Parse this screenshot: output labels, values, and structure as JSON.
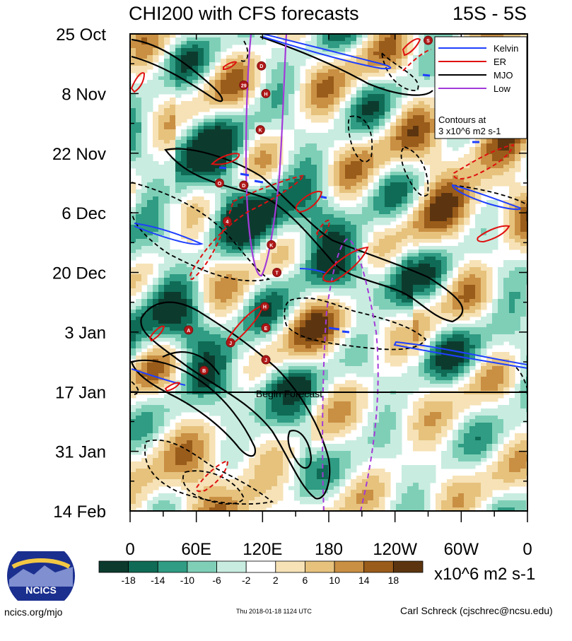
{
  "chart_data": {
    "type": "heatmap",
    "title": "CHI200 with CFS forecasts",
    "subtitle_right": "15S - 5S",
    "y_tick_labels": [
      "25 Oct",
      "8 Nov",
      "22 Nov",
      "6 Dec",
      "20 Dec",
      "3 Jan",
      "17 Jan",
      "31 Jan",
      "14 Feb"
    ],
    "x_tick_labels": [
      "0",
      "60E",
      "120E",
      "180",
      "120W",
      "60W",
      "0"
    ],
    "x_range_deg": [
      0,
      360
    ],
    "y_range_days": [
      0,
      112
    ],
    "forecast_start_day": 84,
    "forecast_label": "Begin Forecast",
    "colorbar": {
      "levels": [
        "-18",
        "-14",
        "-10",
        "-6",
        "-2",
        "2",
        "6",
        "10",
        "14",
        "18"
      ],
      "units": "x10^6 m2 s-1",
      "colors": [
        "#0c3b2e",
        "#0f6b55",
        "#2f9c83",
        "#7fcfb7",
        "#c8ece0",
        "#ffffff",
        "#f6e2b6",
        "#e6c27d",
        "#c98f43",
        "#9a5c1a",
        "#5c3510"
      ]
    },
    "legend": {
      "position": "top-right",
      "entries": [
        {
          "name": "Kelvin",
          "color": "#1f3fff"
        },
        {
          "name": "ER",
          "color": "#e01010"
        },
        {
          "name": "MJO",
          "color": "#000000"
        },
        {
          "name": "Low",
          "color": "#a33ad9"
        }
      ],
      "note_line1": "Contours at",
      "note_line2": "3 x10^6 m2 s-1"
    },
    "storms": [
      {
        "label": "D",
        "lon": 119,
        "day": 7.5
      },
      {
        "label": "29",
        "lon": 103,
        "day": 12
      },
      {
        "label": "H",
        "lon": 123,
        "day": 14
      },
      {
        "label": "K",
        "lon": 118,
        "day": 22.5
      },
      {
        "label": "O",
        "lon": 81,
        "day": 35
      },
      {
        "label": "D",
        "lon": 103,
        "day": 35.5
      },
      {
        "label": "4",
        "lon": 88,
        "day": 44
      },
      {
        "label": "K",
        "lon": 128,
        "day": 49.5
      },
      {
        "label": "T",
        "lon": 133,
        "day": 56
      },
      {
        "label": "H",
        "lon": 122,
        "day": 64
      },
      {
        "label": "A",
        "lon": 53,
        "day": 69.5
      },
      {
        "label": "E",
        "lon": 123,
        "day": 69
      },
      {
        "label": "J",
        "lon": 91,
        "day": 72.5
      },
      {
        "label": "J",
        "lon": 123,
        "day": 76.5
      },
      {
        "label": "B",
        "lon": 67,
        "day": 79
      },
      {
        "label": "S",
        "lon": 270,
        "day": 1.5
      }
    ],
    "x_axis_label": "",
    "y_axis_label": ""
  },
  "footer": {
    "left": "ncics.org/mjo",
    "center": "Thu 2018-01-18 1124 UTC",
    "right": "Carl Schreck (cjschrec@ncsu.edu)",
    "logo_text": "NCICS"
  }
}
